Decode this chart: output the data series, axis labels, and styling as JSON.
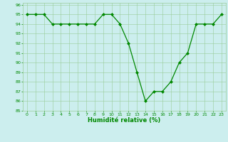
{
  "x": [
    0,
    1,
    2,
    3,
    4,
    5,
    6,
    7,
    8,
    9,
    10,
    11,
    12,
    13,
    14,
    15,
    16,
    17,
    18,
    19,
    20,
    21,
    22,
    23
  ],
  "y": [
    95,
    95,
    95,
    94,
    94,
    94,
    94,
    94,
    94,
    95,
    95,
    94,
    92,
    89,
    86,
    87,
    87,
    88,
    90,
    91,
    94,
    94,
    94,
    95
  ],
  "ylim": [
    85,
    96
  ],
  "xlim": [
    -0.5,
    23.5
  ],
  "yticks": [
    85,
    86,
    87,
    88,
    89,
    90,
    91,
    92,
    93,
    94,
    95,
    96
  ],
  "xticks": [
    0,
    1,
    2,
    3,
    4,
    5,
    6,
    7,
    8,
    9,
    10,
    11,
    12,
    13,
    14,
    15,
    16,
    17,
    18,
    19,
    20,
    21,
    22,
    23
  ],
  "xlabel": "Humidité relative (%)",
  "line_color": "#008800",
  "marker_color": "#008800",
  "bg_color": "#cceeee",
  "grid_color": "#99cc99",
  "tick_color": "#008800",
  "xlabel_color": "#008800",
  "marker": "D",
  "marker_size": 2.0,
  "line_width": 0.9
}
